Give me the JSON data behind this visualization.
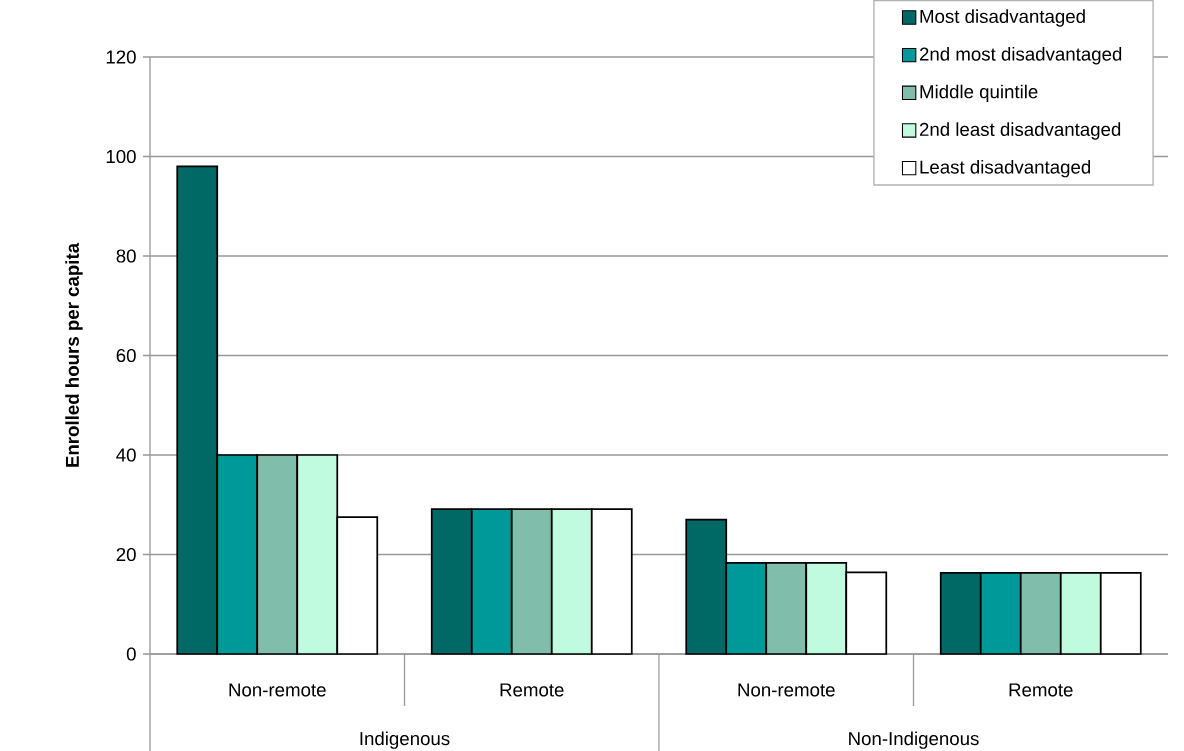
{
  "chart_data": {
    "type": "bar",
    "ylabel": "Enrolled hours per capita",
    "categories": [
      "Non-remote",
      "Remote",
      "Non-remote",
      "Remote"
    ],
    "annotations": [
      "Indigenous",
      "Non-Indigenous"
    ],
    "series": [
      {
        "name": "Most disadvantaged",
        "color": "#006966",
        "values": [
          98,
          29.1,
          27,
          16.3
        ]
      },
      {
        "name": "2nd most disadvantaged",
        "color": "#009999",
        "values": [
          40,
          29.1,
          18.3,
          16.3
        ]
      },
      {
        "name": "Middle quintile",
        "color": "#80bdaa",
        "values": [
          40,
          29.1,
          18.3,
          16.3
        ]
      },
      {
        "name": "2nd least disadvantaged",
        "color": "#c0fadf",
        "values": [
          40,
          29.1,
          18.3,
          16.3
        ]
      },
      {
        "name": "Least disadvantaged",
        "color": "#ffffff",
        "values": [
          27.5,
          29.1,
          16.4,
          16.3
        ]
      }
    ],
    "ylim": [
      0,
      120
    ],
    "yticks": [
      0,
      20,
      40,
      60,
      80,
      100,
      120
    ],
    "grid": "y",
    "legend": "top right"
  }
}
